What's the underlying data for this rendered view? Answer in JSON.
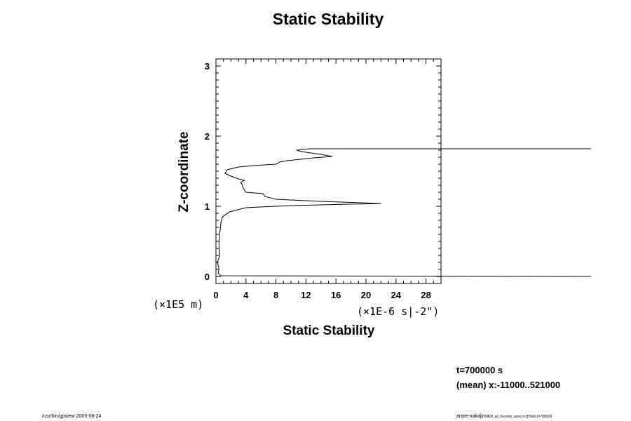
{
  "chart_data": {
    "type": "line",
    "title": "Static Stability",
    "xlabel": "Static Stability",
    "ylabel": "Z-coordinate",
    "x_unit": "(×1E-6 s|-2\")",
    "y_unit": "(×1E5 m)",
    "xlim": [
      0,
      30
    ],
    "ylim": [
      -0.1,
      3.1
    ],
    "x_ticks": [
      "0",
      "4",
      "8",
      "12",
      "16",
      "20",
      "24",
      "28"
    ],
    "y_ticks": [
      "0",
      "1",
      "2",
      "3"
    ],
    "series": [
      {
        "points": [
          [
            50,
            0.0
          ],
          [
            0.6,
            0.01
          ],
          [
            0.3,
            0.05
          ],
          [
            0.4,
            0.12
          ],
          [
            0.2,
            0.2
          ],
          [
            0.5,
            0.3
          ],
          [
            0.4,
            0.45
          ],
          [
            0.5,
            0.6
          ],
          [
            0.6,
            0.7
          ],
          [
            0.7,
            0.8
          ],
          [
            0.9,
            0.85
          ],
          [
            1.8,
            0.92
          ],
          [
            4.0,
            0.98
          ],
          [
            10.0,
            1.01
          ],
          [
            22.0,
            1.04
          ],
          [
            14.0,
            1.07
          ],
          [
            8.0,
            1.1
          ],
          [
            6.5,
            1.14
          ],
          [
            6.3,
            1.18
          ],
          [
            4.0,
            1.2
          ],
          [
            3.8,
            1.23
          ],
          [
            3.6,
            1.27
          ],
          [
            3.5,
            1.31
          ],
          [
            3.3,
            1.34
          ],
          [
            3.8,
            1.37
          ],
          [
            3.0,
            1.39
          ],
          [
            2.0,
            1.43
          ],
          [
            1.2,
            1.47
          ],
          [
            1.5,
            1.52
          ],
          [
            3.0,
            1.56
          ],
          [
            5.0,
            1.58
          ],
          [
            8.0,
            1.6
          ],
          [
            8.5,
            1.63
          ],
          [
            9.5,
            1.65
          ],
          [
            13.0,
            1.69
          ],
          [
            15.5,
            1.71
          ],
          [
            14.0,
            1.74
          ],
          [
            12.0,
            1.77
          ],
          [
            11.0,
            1.79
          ],
          [
            10.8,
            1.8
          ],
          [
            12.5,
            1.82
          ],
          [
            50,
            1.82
          ]
        ]
      }
    ]
  },
  "info": {
    "time": "t=700000 s",
    "mean": "(mean) x:-11000..521000"
  },
  "footer": {
    "left": "/usr/bin/gpview 2005-08-24",
    "right_main": "arare-nakajima",
    "right_small": "03_wt_Kessler_anel.nc@Stab,t=700000"
  }
}
